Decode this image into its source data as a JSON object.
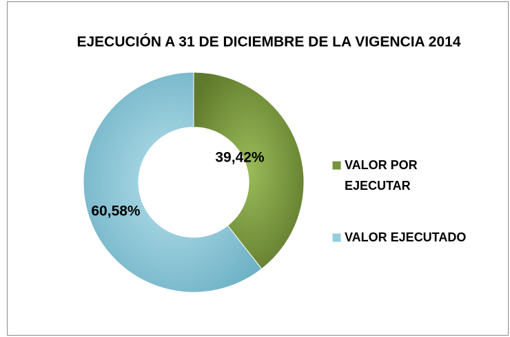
{
  "chart_data": {
    "type": "donut",
    "title": "EJECUCIÓN  A 31 DE DICIEMBRE DE  LA VIGENCIA 2014",
    "categories": [
      "VALOR POR EJECUTAR",
      "VALOR EJECUTADO"
    ],
    "values": [
      39.42,
      60.58
    ],
    "value_labels": [
      "39,42%",
      "60,58%"
    ],
    "colors": [
      "#77933c",
      "#93cddd"
    ],
    "legend": "right"
  }
}
